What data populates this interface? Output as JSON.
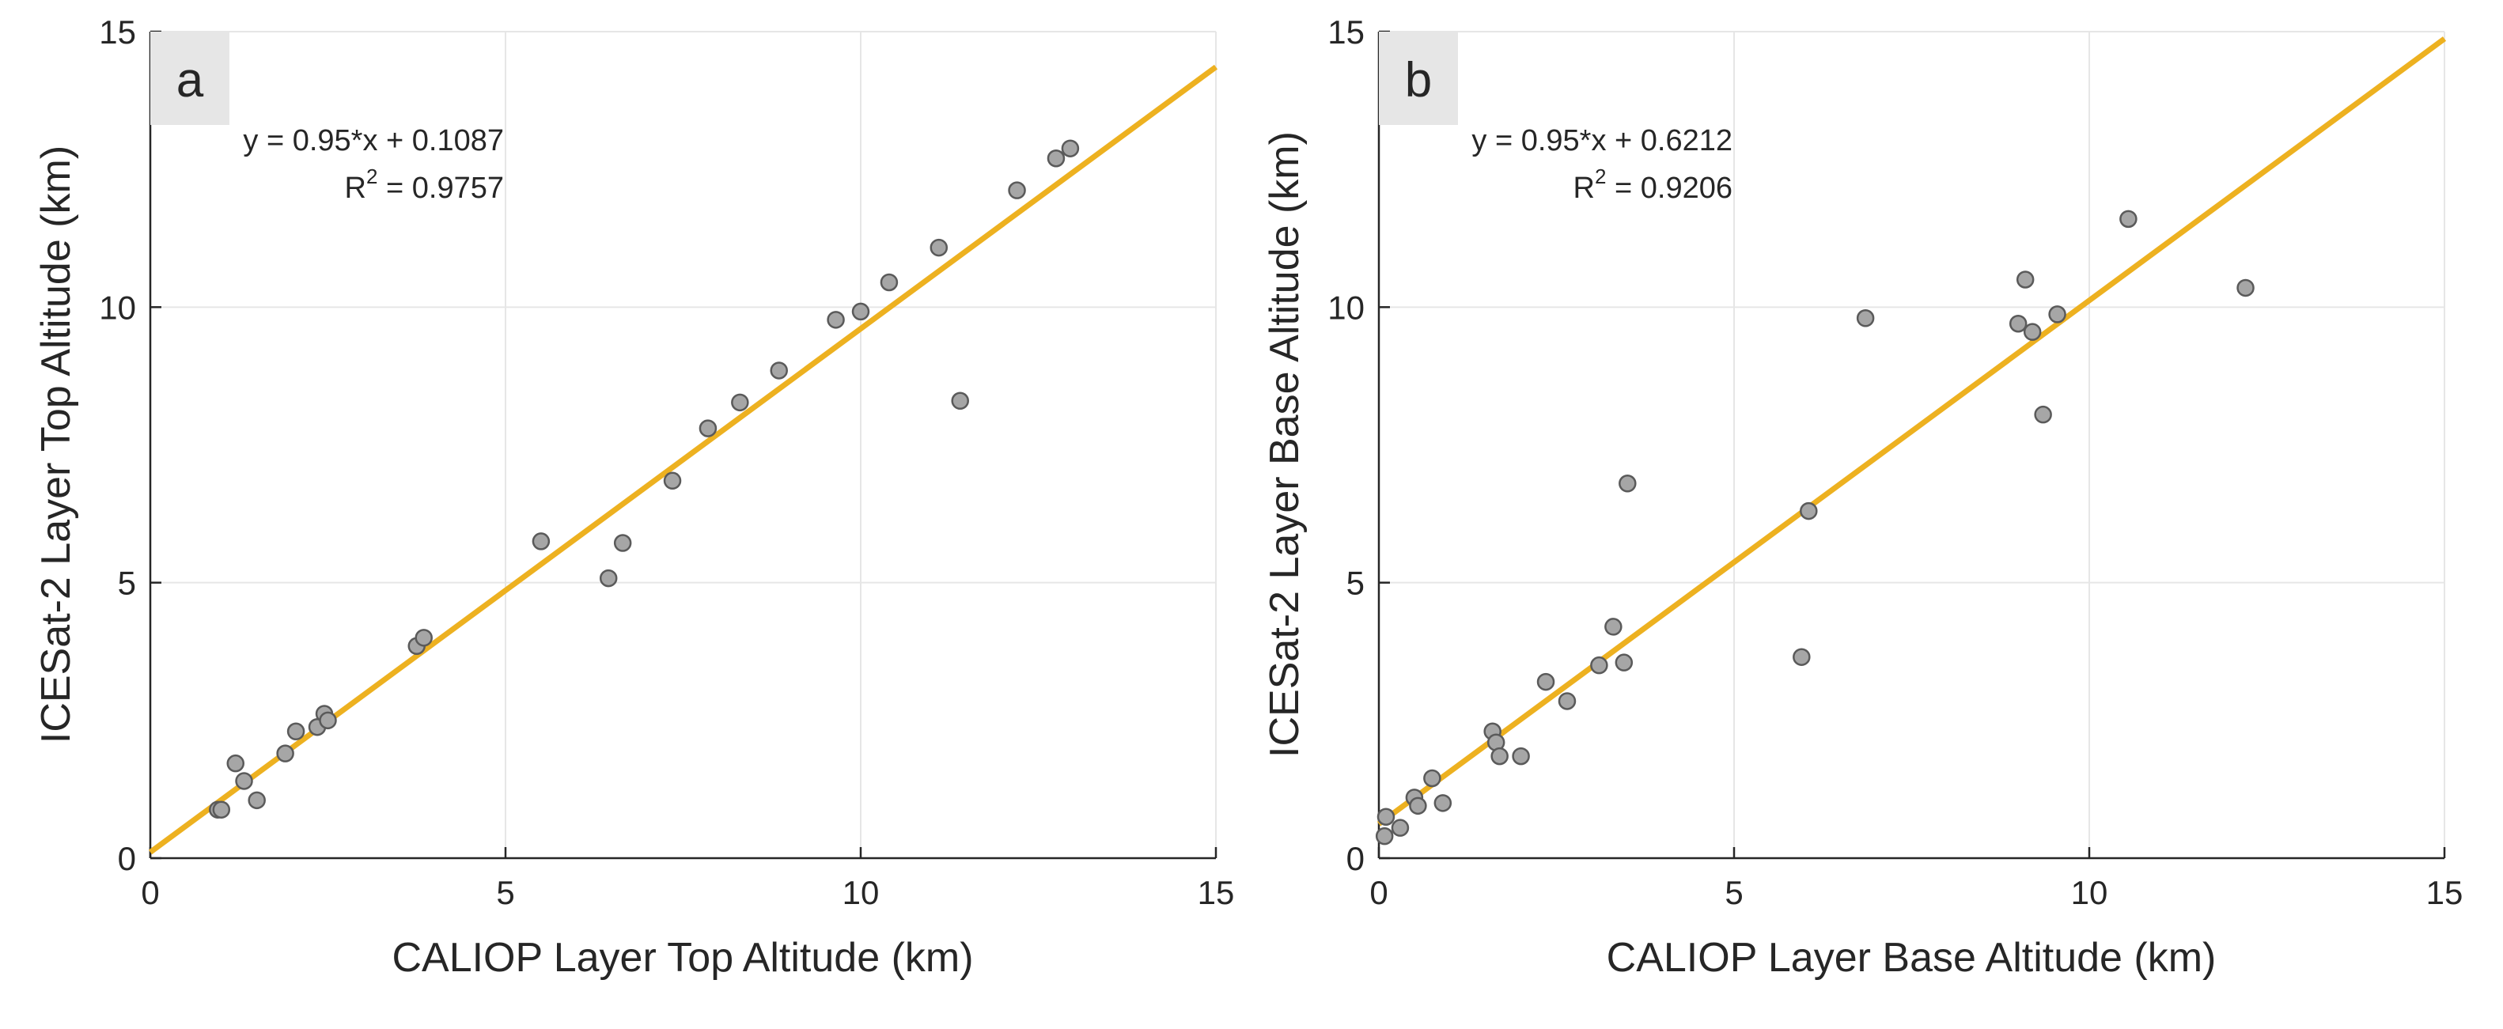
{
  "chart_data": [
    {
      "type": "scatter",
      "panel_label": "a",
      "xlabel": "CALIOP Layer Top Altitude (km)",
      "ylabel": "ICESat-2 Layer Top Altitude (km)",
      "xlim": [
        0,
        15
      ],
      "ylim": [
        0,
        15
      ],
      "xticks": [
        "0",
        "5",
        "10",
        "15"
      ],
      "yticks": [
        "0",
        "5",
        "10",
        "15"
      ],
      "grid": true,
      "fit": {
        "slope": 0.95,
        "intercept": 0.1087,
        "color": "#EDB120"
      },
      "annotation": {
        "equation": "y = 0.95*x + 0.1087",
        "r2_label": "R",
        "r2_exp": "2",
        "r2_value": " = 0.9757"
      },
      "points": [
        [
          0.95,
          0.88
        ],
        [
          1.0,
          0.88
        ],
        [
          1.2,
          1.72
        ],
        [
          1.32,
          1.4
        ],
        [
          1.5,
          1.05
        ],
        [
          1.9,
          1.9
        ],
        [
          2.05,
          2.3
        ],
        [
          2.35,
          2.38
        ],
        [
          2.45,
          2.62
        ],
        [
          2.5,
          2.5
        ],
        [
          3.75,
          3.85
        ],
        [
          3.85,
          4.0
        ],
        [
          5.5,
          5.75
        ],
        [
          6.45,
          5.08
        ],
        [
          6.65,
          5.72
        ],
        [
          7.35,
          6.85
        ],
        [
          7.85,
          7.8
        ],
        [
          8.3,
          8.27
        ],
        [
          8.85,
          8.85
        ],
        [
          9.65,
          9.77
        ],
        [
          10.0,
          9.92
        ],
        [
          10.4,
          10.45
        ],
        [
          11.1,
          11.08
        ],
        [
          11.4,
          8.3
        ],
        [
          12.2,
          12.12
        ],
        [
          12.75,
          12.7
        ],
        [
          12.95,
          12.88
        ]
      ]
    },
    {
      "type": "scatter",
      "panel_label": "b",
      "xlabel": "CALIOP Layer Base Altitude (km)",
      "ylabel": "ICESat-2 Layer Base Altitude (km)",
      "xlim": [
        0,
        15
      ],
      "ylim": [
        0,
        15
      ],
      "xticks": [
        "0",
        "5",
        "10",
        "15"
      ],
      "yticks": [
        "0",
        "5",
        "10",
        "15"
      ],
      "grid": true,
      "fit": {
        "slope": 0.95,
        "intercept": 0.6212,
        "color": "#EDB120"
      },
      "annotation": {
        "equation": "y = 0.95*x + 0.6212",
        "r2_label": "R",
        "r2_exp": "2",
        "r2_value": " = 0.9206"
      },
      "points": [
        [
          0.08,
          0.4
        ],
        [
          0.1,
          0.75
        ],
        [
          0.3,
          0.55
        ],
        [
          0.5,
          1.1
        ],
        [
          0.55,
          0.95
        ],
        [
          0.75,
          1.45
        ],
        [
          0.9,
          1.0
        ],
        [
          1.6,
          2.3
        ],
        [
          1.65,
          2.1
        ],
        [
          1.7,
          1.85
        ],
        [
          2.0,
          1.85
        ],
        [
          2.35,
          3.2
        ],
        [
          2.65,
          2.85
        ],
        [
          3.1,
          3.5
        ],
        [
          3.3,
          4.2
        ],
        [
          3.45,
          3.55
        ],
        [
          3.5,
          6.8
        ],
        [
          5.95,
          3.65
        ],
        [
          6.05,
          6.3
        ],
        [
          6.85,
          9.8
        ],
        [
          9.0,
          9.7
        ],
        [
          9.1,
          10.5
        ],
        [
          9.2,
          9.55
        ],
        [
          9.35,
          8.05
        ],
        [
          9.55,
          9.87
        ],
        [
          10.55,
          11.6
        ],
        [
          12.2,
          10.35
        ]
      ]
    }
  ]
}
